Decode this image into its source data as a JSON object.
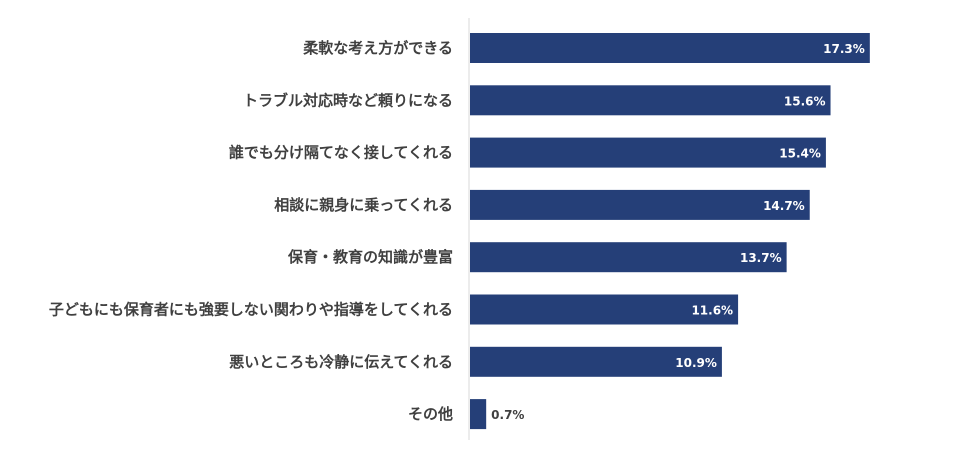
{
  "chart_data": {
    "type": "bar",
    "orientation": "horizontal",
    "title": "",
    "xlabel": "",
    "ylabel": "",
    "xlim": [
      0,
      22.5
    ],
    "bar_color": "#253f78",
    "categories": [
      "柔軟な考え方ができる",
      "トラブル対応時など頼りになる",
      "誰でも分け隔てなく接してくれる",
      "相談に親身に乗ってくれる",
      "保育・教育の知識が豊富",
      "子どもにも保育者にも強要しない関わりや指導をしてくれる",
      "悪いところも冷静に伝えてくれる",
      "その他"
    ],
    "values": [
      17.3,
      15.6,
      15.4,
      14.7,
      13.7,
      11.6,
      10.9,
      0.7
    ],
    "value_labels": [
      "17.3%",
      "15.6%",
      "15.4%",
      "14.7%",
      "13.7%",
      "11.6%",
      "10.9%",
      "0.7%"
    ]
  }
}
